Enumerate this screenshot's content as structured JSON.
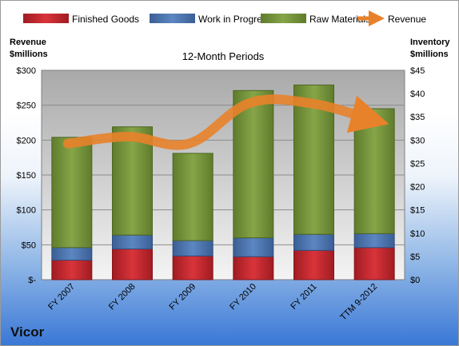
{
  "company": "Vicor",
  "chart_data": {
    "type": "bar",
    "stacked": true,
    "title": "12-Month Periods",
    "categories": [
      "FY 2007",
      "FY 2008",
      "FY 2009",
      "FY 2010",
      "FY 2011",
      "TTM 9-2012"
    ],
    "series": [
      {
        "name": "Finished Goods",
        "color": "#c0242c",
        "values": [
          28,
          44,
          34,
          33,
          42,
          46
        ]
      },
      {
        "name": "Work in Progress",
        "color": "#4a74b0",
        "values": [
          18,
          20,
          22,
          27,
          23,
          20
        ]
      },
      {
        "name": "Raw Materials",
        "color": "#77963c",
        "values": [
          158,
          155,
          125,
          211,
          214,
          179
        ]
      }
    ],
    "line_series": {
      "name": "Revenue",
      "color": "#e8822a",
      "values": [
        195,
        205,
        195,
        253,
        253,
        230
      ]
    },
    "left_axis": {
      "label_line1": "Revenue",
      "label_line2": "$millions",
      "ylim": [
        0,
        300
      ],
      "ticks": [
        0,
        50,
        100,
        150,
        200,
        250,
        300
      ],
      "tick_labels": [
        "$-",
        "$50",
        "$100",
        "$150",
        "$200",
        "$250",
        "$300"
      ]
    },
    "right_axis": {
      "label_line1": "Inventory",
      "label_line2": "$millions",
      "ylim": [
        0,
        45
      ],
      "tick_labels": [
        "$0",
        "$5",
        "$10",
        "$15",
        "$20",
        "$25",
        "$30",
        "$35",
        "$40",
        "$45"
      ]
    },
    "legend_position": "top",
    "grid": true
  }
}
